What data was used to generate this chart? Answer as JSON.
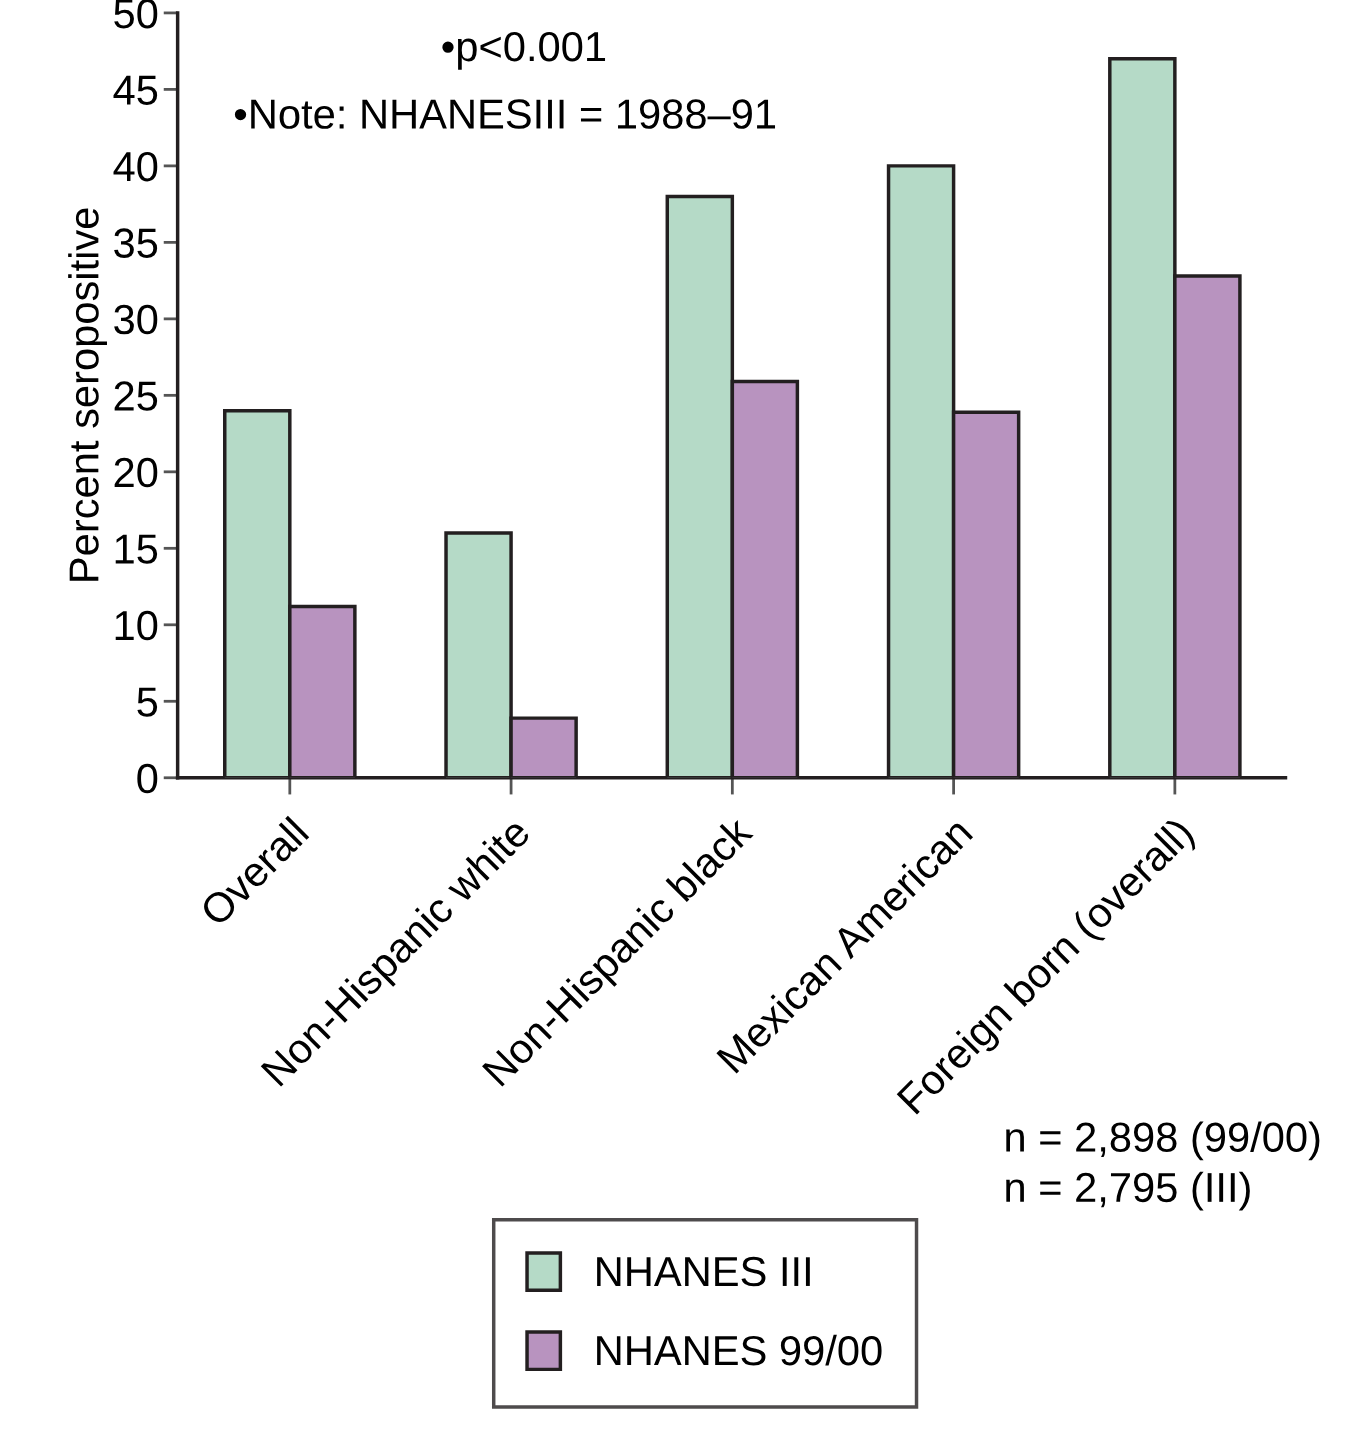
{
  "chart_data": {
    "type": "bar",
    "ylabel": "Percent seropositive",
    "categories": [
      "Overall",
      "Non-Hispanic white",
      "Non-Hispanic black",
      "Mexican American",
      "Foreign born (overall)"
    ],
    "series": [
      {
        "name": "NHANES III",
        "color": "#b5dac7",
        "values": [
          24,
          16,
          38,
          40,
          47
        ]
      },
      {
        "name": "NHANES 99/00",
        "color": "#b893bf",
        "values": [
          11.2,
          3.9,
          25.9,
          23.9,
          32.8
        ]
      }
    ],
    "ylim": [
      0,
      50
    ],
    "yticks": [
      0,
      5,
      10,
      15,
      20,
      25,
      30,
      35,
      40,
      45,
      50
    ],
    "annotations": [
      "•p<0.001",
      "•Note: NHANESIII = 1988–91",
      "n = 2,898 (99/00)",
      "n = 2,795 (III)"
    ],
    "legend": "bottom",
    "grid": false
  }
}
